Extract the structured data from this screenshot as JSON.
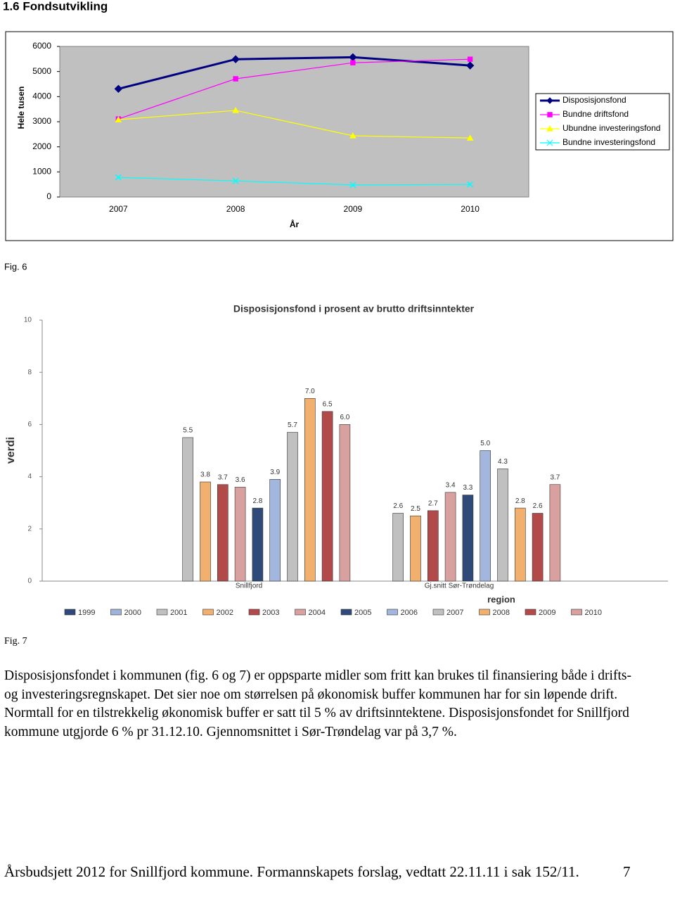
{
  "heading": "1.6 Fondsutvikling",
  "chart_data": [
    {
      "type": "line",
      "y_label": "Hele tusen",
      "x_label": "År",
      "categories": [
        "2007",
        "2008",
        "2009",
        "2010"
      ],
      "series": [
        {
          "name": "Disposisjonsfond",
          "color": "#000080",
          "marker": "diamond",
          "values": [
            4310,
            5490,
            5570,
            5240
          ]
        },
        {
          "name": "Bundne driftsfond",
          "color": "#ff00ff",
          "marker": "square",
          "values": [
            3110,
            4710,
            5350,
            5490
          ]
        },
        {
          "name": "Ubundne investeringsfond",
          "color": "#ffff00",
          "marker": "triangle",
          "values": [
            3080,
            3450,
            2440,
            2350
          ]
        },
        {
          "name": "Bundne investeringsfond",
          "color": "#00ffff",
          "marker": "x",
          "values": [
            780,
            640,
            480,
            500
          ]
        }
      ],
      "ylim": [
        0,
        6000
      ],
      "yticks": [
        0,
        1000,
        2000,
        3000,
        4000,
        5000,
        6000
      ],
      "legend": "right"
    },
    {
      "type": "bar",
      "title": "Disposisjonsfond i prosent av brutto driftsinntekter",
      "y_label": "verdi",
      "x_label": "region",
      "categories": [
        "Snillfjord",
        "Gj.snitt Sør-Trøndelag"
      ],
      "series": [
        {
          "name": "1999",
          "color": "#2f4a78",
          "values": [
            null,
            null
          ],
          "value_labels": [
            null,
            null
          ]
        },
        {
          "name": "2000",
          "color": "#9fb3d9",
          "values": [
            null,
            null
          ],
          "value_labels": [
            null,
            null
          ]
        },
        {
          "name": "2001",
          "color": "#c0c0c0",
          "values": [
            5.5,
            2.6
          ],
          "value_labels": [
            "5.5",
            "2.6"
          ]
        },
        {
          "name": "2002",
          "color": "#f2b06e",
          "values": [
            3.8,
            2.5
          ],
          "value_labels": [
            "3.8",
            "2.5"
          ]
        },
        {
          "name": "2003",
          "color": "#b34a4a",
          "values": [
            3.7,
            2.7
          ],
          "value_labels": [
            "3.7",
            "2.7"
          ]
        },
        {
          "name": "2004",
          "color": "#d9a0a0",
          "values": [
            3.6,
            3.4
          ],
          "value_labels": [
            "3.6",
            "3.4"
          ]
        },
        {
          "name": "2005",
          "color": "#2f4a78",
          "values": [
            2.8,
            3.3
          ],
          "value_labels": [
            "2.8",
            "3.3"
          ]
        },
        {
          "name": "2006",
          "color": "#a3b6dd",
          "values": [
            3.9,
            5.0
          ],
          "value_labels": [
            "3.9",
            "5.0"
          ]
        },
        {
          "name": "2007",
          "color": "#c0c0c0",
          "values": [
            5.7,
            4.3
          ],
          "value_labels": [
            "5.7",
            "4.3"
          ]
        },
        {
          "name": "2008",
          "color": "#f2b06e",
          "values": [
            7.0,
            2.8
          ],
          "value_labels": [
            "7.0",
            "2.8"
          ]
        },
        {
          "name": "2009",
          "color": "#b34a4a",
          "values": [
            6.5,
            2.6
          ],
          "value_labels": [
            "6.5",
            "2.6"
          ]
        },
        {
          "name": "2010",
          "color": "#d9a0a0",
          "values": [
            6.0,
            3.7
          ],
          "value_labels": [
            "6.0",
            "3.7"
          ]
        }
      ],
      "ylim": [
        0,
        10
      ],
      "yticks": [
        0,
        2,
        4,
        6,
        8,
        10
      ],
      "legend": "bottom"
    }
  ],
  "captions": [
    "Fig. 6",
    "Fig. 7"
  ],
  "paragraph": "Disposisjonsfondet i kommunen (fig. 6 og 7) er oppsparte midler som fritt kan brukes til finansiering både i drifts- og investeringsregnskapet. Det sier noe om størrelsen på økonomisk buffer kommunen har for sin løpende drift. Normtall for en tilstrekkelig økonomisk buffer er satt til 5 % av driftsinntektene. Disposisjonsfondet for Snillfjord kommune utgjorde 6 % pr 31.12.10. Gjennomsnittet i Sør-Trøndelag var på 3,7 %.",
  "footer": {
    "text": "Årsbudsjett 2012 for Snillfjord kommune. Formannskapets forslag, vedtatt 22.11.11 i sak 152/11.",
    "page": "7"
  }
}
